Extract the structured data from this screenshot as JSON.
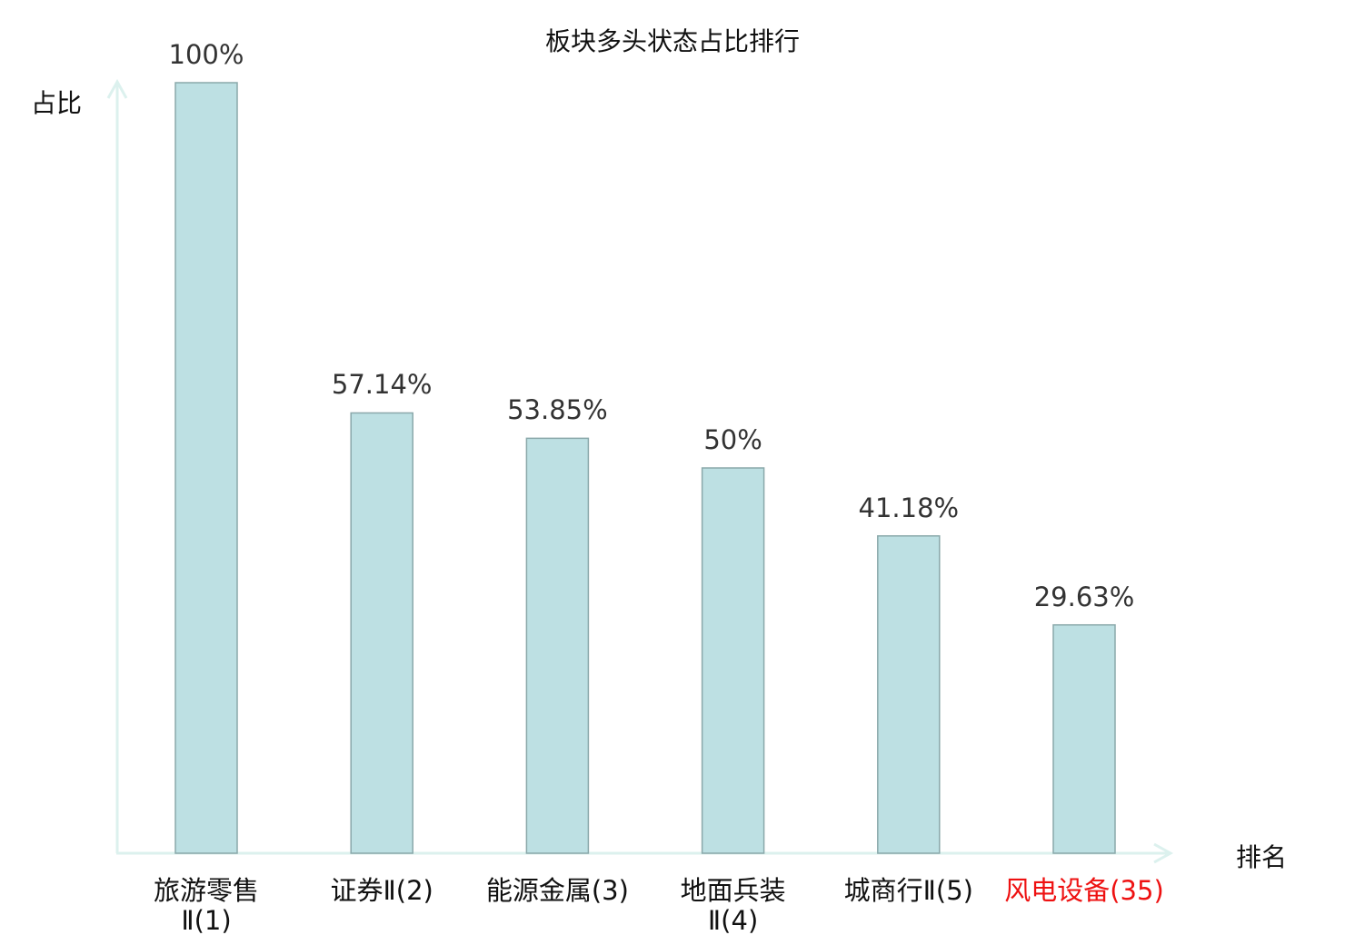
{
  "chart_data": {
    "type": "bar",
    "title": "板块多头状态占比排行",
    "ylabel": "占比",
    "xlabel": "排名",
    "categories": [
      "旅游零售\nⅡ(1)",
      "证券Ⅱ(2)",
      "能源金属(3)",
      "地面兵装\nⅡ(4)",
      "城商行Ⅱ(5)",
      "风电设备(35)"
    ],
    "values": [
      100,
      57.14,
      53.85,
      50,
      41.18,
      29.63
    ],
    "value_labels": [
      "100%",
      "57.14%",
      "53.85%",
      "50%",
      "41.18%",
      "29.63%"
    ],
    "highlight_index": 5,
    "ylim": [
      0,
      100
    ],
    "grid": false,
    "colors": {
      "bar_fill": "#bde0e3",
      "bar_stroke": "#8aa8aa",
      "axis": "#dcf1ee",
      "highlight": "#ee1111",
      "text": "#111111"
    }
  }
}
